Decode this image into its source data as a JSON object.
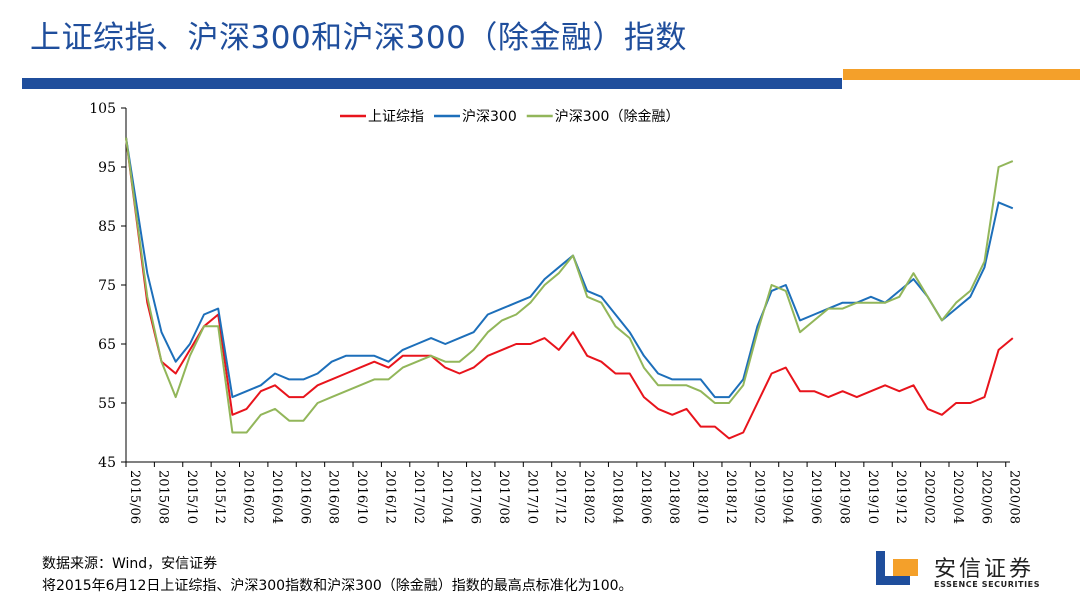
{
  "title": "上证综指、沪深300和沪深300（除金融）指数",
  "footnote": {
    "source": "数据来源：Wind，安信证券",
    "note": "将2015年6月12日上证综指、沪深300指数和沪深300（除金融）指数的最高点标准化为100。"
  },
  "logo": {
    "name_cn": "安信证券",
    "name_en": "ESSENCE SECURITIES",
    "colors": {
      "blue": "#1f4e9c",
      "orange": "#f4a02a"
    }
  },
  "colors": {
    "title": "#1f4e9c",
    "bar_blue": "#1f4e9c",
    "bar_orange": "#f4a02a"
  },
  "chart_data": {
    "type": "line",
    "title": "",
    "xlabel": "",
    "ylabel": "",
    "ylim": [
      45,
      105
    ],
    "yticks": [
      45,
      55,
      65,
      75,
      85,
      95,
      105
    ],
    "grid": false,
    "legend_position": "top-center",
    "x_tick_labels": [
      "2015/06",
      "2015/08",
      "2015/10",
      "2015/12",
      "2016/02",
      "2016/04",
      "2016/06",
      "2016/08",
      "2016/10",
      "2016/12",
      "2017/02",
      "2017/04",
      "2017/06",
      "2017/08",
      "2017/10",
      "2017/12",
      "2018/02",
      "2018/04",
      "2018/06",
      "2018/08",
      "2018/10",
      "2018/12",
      "2019/02",
      "2019/04",
      "2019/06",
      "2019/08",
      "2019/10",
      "2019/12",
      "2020/02",
      "2020/04",
      "2020/06",
      "2020/08"
    ],
    "x": [
      "2015/06",
      "2015/07",
      "2015/08",
      "2015/09",
      "2015/10",
      "2015/11",
      "2015/12",
      "2016/01",
      "2016/02",
      "2016/03",
      "2016/04",
      "2016/05",
      "2016/06",
      "2016/07",
      "2016/08",
      "2016/09",
      "2016/10",
      "2016/11",
      "2016/12",
      "2017/01",
      "2017/02",
      "2017/03",
      "2017/04",
      "2017/05",
      "2017/06",
      "2017/07",
      "2017/08",
      "2017/09",
      "2017/10",
      "2017/11",
      "2017/12",
      "2018/01",
      "2018/02",
      "2018/03",
      "2018/04",
      "2018/05",
      "2018/06",
      "2018/07",
      "2018/08",
      "2018/09",
      "2018/10",
      "2018/11",
      "2018/12",
      "2019/01",
      "2019/02",
      "2019/03",
      "2019/04",
      "2019/05",
      "2019/06",
      "2019/07",
      "2019/08",
      "2019/09",
      "2019/10",
      "2019/11",
      "2019/12",
      "2020/01",
      "2020/02",
      "2020/03",
      "2020/04",
      "2020/05",
      "2020/06",
      "2020/07",
      "2020/08"
    ],
    "series": [
      {
        "name": "上证综指",
        "color": "#e8141c",
        "values": [
          100,
          72,
          62,
          60,
          64,
          68,
          70,
          53,
          54,
          57,
          58,
          56,
          56,
          58,
          59,
          60,
          61,
          62,
          61,
          63,
          63,
          63,
          61,
          60,
          61,
          63,
          64,
          65,
          65,
          66,
          64,
          67,
          63,
          62,
          60,
          60,
          56,
          54,
          53,
          54,
          51,
          51,
          49,
          50,
          55,
          60,
          61,
          57,
          57,
          56,
          57,
          56,
          57,
          58,
          57,
          58,
          54,
          53,
          55,
          55,
          56,
          64,
          66
        ]
      },
      {
        "name": "沪深300",
        "color": "#1d6fba",
        "values": [
          100,
          77,
          67,
          62,
          65,
          70,
          71,
          56,
          57,
          58,
          60,
          59,
          59,
          60,
          62,
          63,
          63,
          63,
          62,
          64,
          65,
          66,
          65,
          66,
          67,
          70,
          71,
          72,
          73,
          76,
          78,
          80,
          74,
          73,
          70,
          67,
          63,
          60,
          59,
          59,
          59,
          56,
          56,
          59,
          68,
          74,
          75,
          69,
          70,
          71,
          72,
          72,
          73,
          72,
          74,
          76,
          73,
          69,
          71,
          73,
          78,
          89,
          88
        ]
      },
      {
        "name": "沪深300（除金融）",
        "color": "#92b65a",
        "values": [
          100,
          73,
          62,
          56,
          63,
          68,
          68,
          50,
          50,
          53,
          54,
          52,
          52,
          55,
          56,
          57,
          58,
          59,
          59,
          61,
          62,
          63,
          62,
          62,
          64,
          67,
          69,
          70,
          72,
          75,
          77,
          80,
          73,
          72,
          68,
          66,
          61,
          58,
          58,
          58,
          57,
          55,
          55,
          58,
          67,
          75,
          74,
          67,
          69,
          71,
          71,
          72,
          72,
          72,
          73,
          77,
          73,
          69,
          72,
          74,
          79,
          95,
          96
        ]
      }
    ]
  }
}
